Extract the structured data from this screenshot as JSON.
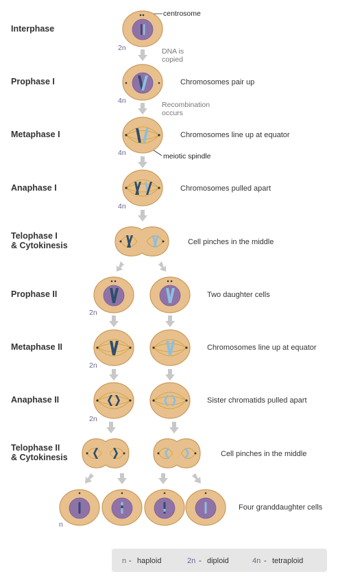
{
  "stages": [
    {
      "label_lines": [
        "Interphase"
      ],
      "description": ""
    },
    {
      "label_lines": [
        "Prophase I"
      ],
      "description": "Chromosomes pair up"
    },
    {
      "label_lines": [
        "Metaphase I"
      ],
      "description": "Chromosomes line up at equator"
    },
    {
      "label_lines": [
        "Anaphase I"
      ],
      "description": "Chromosomes pulled apart"
    },
    {
      "label_lines": [
        "Telophase I",
        "& Cytokinesis"
      ],
      "description": "Cell pinches in the middle"
    },
    {
      "label_lines": [
        "Prophase II"
      ],
      "description": "Two daughter cells"
    },
    {
      "label_lines": [
        "Metaphase II"
      ],
      "description": "Chromosomes line up at equator"
    },
    {
      "label_lines": [
        "Anaphase II"
      ],
      "description": "Sister chromatids pulled apart"
    },
    {
      "label_lines": [
        "Telophase II",
        "& Cytokinesis"
      ],
      "description": "Cell pinches in the middle"
    },
    {
      "label_lines": [],
      "description": "Four granddaughter cells"
    }
  ],
  "annotations": {
    "dna_copied": [
      "DNA is",
      "copied"
    ],
    "recombination": [
      "Recombination",
      "occurs"
    ]
  },
  "callouts": {
    "centrosome": "centrosome",
    "meiotic_spindle": "meiotic spindle"
  },
  "ploidy_labels": [
    "2n",
    "4n",
    "4n",
    "4n",
    "2n",
    "2n",
    "2n",
    "n"
  ],
  "legend": [
    {
      "symbol": "n",
      "text": "haploid"
    },
    {
      "symbol": "2n",
      "text": "diploid"
    },
    {
      "symbol": "4n",
      "text": "tetraploid"
    }
  ],
  "legend_separator": "-",
  "colors": {
    "cell": "#e8c08d",
    "nucleus": "#8f72a8",
    "chromosome_dark": "#2d4f6e",
    "chromosome_light": "#8bbfe0",
    "spindle": "#d2a544",
    "arrow": "#c8c8c8",
    "ploidy_text": "#6a6590"
  }
}
